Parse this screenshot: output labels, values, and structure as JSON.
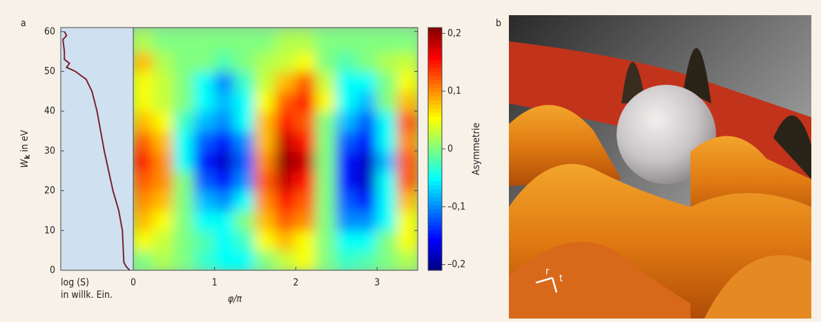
{
  "chart_data": [
    {
      "type": "line",
      "panel_label": "a",
      "ylabel": [
        "W",
        "k",
        " in eV"
      ],
      "xlabel": [
        "log (S)",
        "in willk. Ein."
      ],
      "color": "#7a1f2b",
      "background": "#cfe0f0",
      "xlim": [
        0,
        1
      ],
      "ylim": [
        0,
        61
      ],
      "yticks": [
        0,
        10,
        20,
        30,
        40,
        50,
        60
      ],
      "x": [
        0.95,
        0.9,
        0.87,
        0.85,
        0.8,
        0.72,
        0.66,
        0.6,
        0.55,
        0.5,
        0.43,
        0.35,
        0.2,
        0.08,
        0.12,
        0.05,
        0.05,
        0.03,
        0.08,
        0.05
      ],
      "values": [
        0,
        1,
        2,
        10,
        15,
        20,
        25,
        30,
        35,
        40,
        45,
        48,
        50,
        51,
        52,
        53,
        55,
        58,
        59,
        60
      ]
    },
    {
      "type": "heatmap",
      "xlabel": "φ/π",
      "colorbar_label": "Asymmetrie",
      "colormap": "jet",
      "xlim": [
        0,
        3.5
      ],
      "xticks": [
        0,
        1,
        2,
        3
      ],
      "ylim": [
        0,
        61
      ],
      "zlim": [
        -0.21,
        0.21
      ],
      "zticks": [
        {
          "value": 0.2,
          "label": "0,2"
        },
        {
          "value": 0.1,
          "label": "0,1"
        },
        0,
        {
          "value": -0.1,
          "label": "–0,1"
        },
        {
          "value": -0.2,
          "label": "–0,2"
        }
      ],
      "x": [
        0.125,
        0.375,
        0.625,
        0.875,
        1.125,
        1.375,
        1.625,
        1.875,
        2.125,
        2.375,
        2.625,
        2.875,
        3.125,
        3.375
      ],
      "y": [
        2.5,
        7.5,
        12.5,
        17.5,
        22.5,
        27.5,
        32.5,
        37.5,
        42.5,
        47.5,
        52.5,
        57.5
      ],
      "z": [
        [
          0,
          0.02,
          0,
          -0.03,
          -0.05,
          -0.05,
          0,
          0.03,
          0.05,
          0,
          -0.03,
          -0.02,
          0,
          0.02
        ],
        [
          0.05,
          0.03,
          0,
          -0.02,
          -0.05,
          -0.03,
          0.05,
          0.08,
          0.05,
          0,
          -0.05,
          -0.05,
          0,
          0.05
        ],
        [
          0.08,
          0.05,
          0,
          -0.05,
          -0.05,
          0,
          0.08,
          0.12,
          0.1,
          0,
          -0.1,
          -0.1,
          -0.05,
          0.05
        ],
        [
          0.1,
          0.08,
          0,
          -0.08,
          -0.1,
          -0.05,
          0.1,
          0.15,
          0.12,
          0,
          -0.12,
          -0.15,
          -0.05,
          0.08
        ],
        [
          0.12,
          0.1,
          0,
          -0.12,
          -0.15,
          -0.1,
          0.12,
          0.18,
          0.15,
          0,
          -0.15,
          -0.18,
          -0.05,
          0.12
        ],
        [
          0.15,
          0.1,
          -0.05,
          -0.15,
          -0.18,
          -0.12,
          0.1,
          0.2,
          0.18,
          0,
          -0.15,
          -0.18,
          -0.08,
          0.12
        ],
        [
          0.12,
          0.08,
          -0.05,
          -0.12,
          -0.15,
          -0.1,
          0.08,
          0.18,
          0.15,
          0,
          -0.12,
          -0.15,
          -0.05,
          0.1
        ],
        [
          0.08,
          0.05,
          -0.03,
          -0.08,
          -0.1,
          -0.05,
          0.08,
          0.15,
          0.12,
          0,
          -0.08,
          -0.12,
          -0.05,
          0.12
        ],
        [
          0.05,
          0.03,
          0,
          -0.05,
          -0.08,
          -0.05,
          0.05,
          0.12,
          0.15,
          0.05,
          -0.05,
          -0.08,
          0,
          0.08
        ],
        [
          0.05,
          0.03,
          0,
          -0.05,
          -0.1,
          -0.03,
          0.03,
          0.08,
          0.12,
          0.03,
          -0.05,
          -0.05,
          0,
          0.05
        ],
        [
          0.08,
          0.02,
          0,
          0,
          -0.02,
          0,
          0.02,
          0.03,
          0.05,
          0,
          -0.02,
          0,
          0.02,
          0.03
        ],
        [
          0.02,
          0,
          0,
          0,
          0,
          0,
          0,
          0.02,
          0.02,
          0,
          0,
          0,
          0,
          0
        ]
      ]
    }
  ],
  "image_panel": {
    "label": "b",
    "axis_labels": [
      "r",
      "t"
    ]
  }
}
